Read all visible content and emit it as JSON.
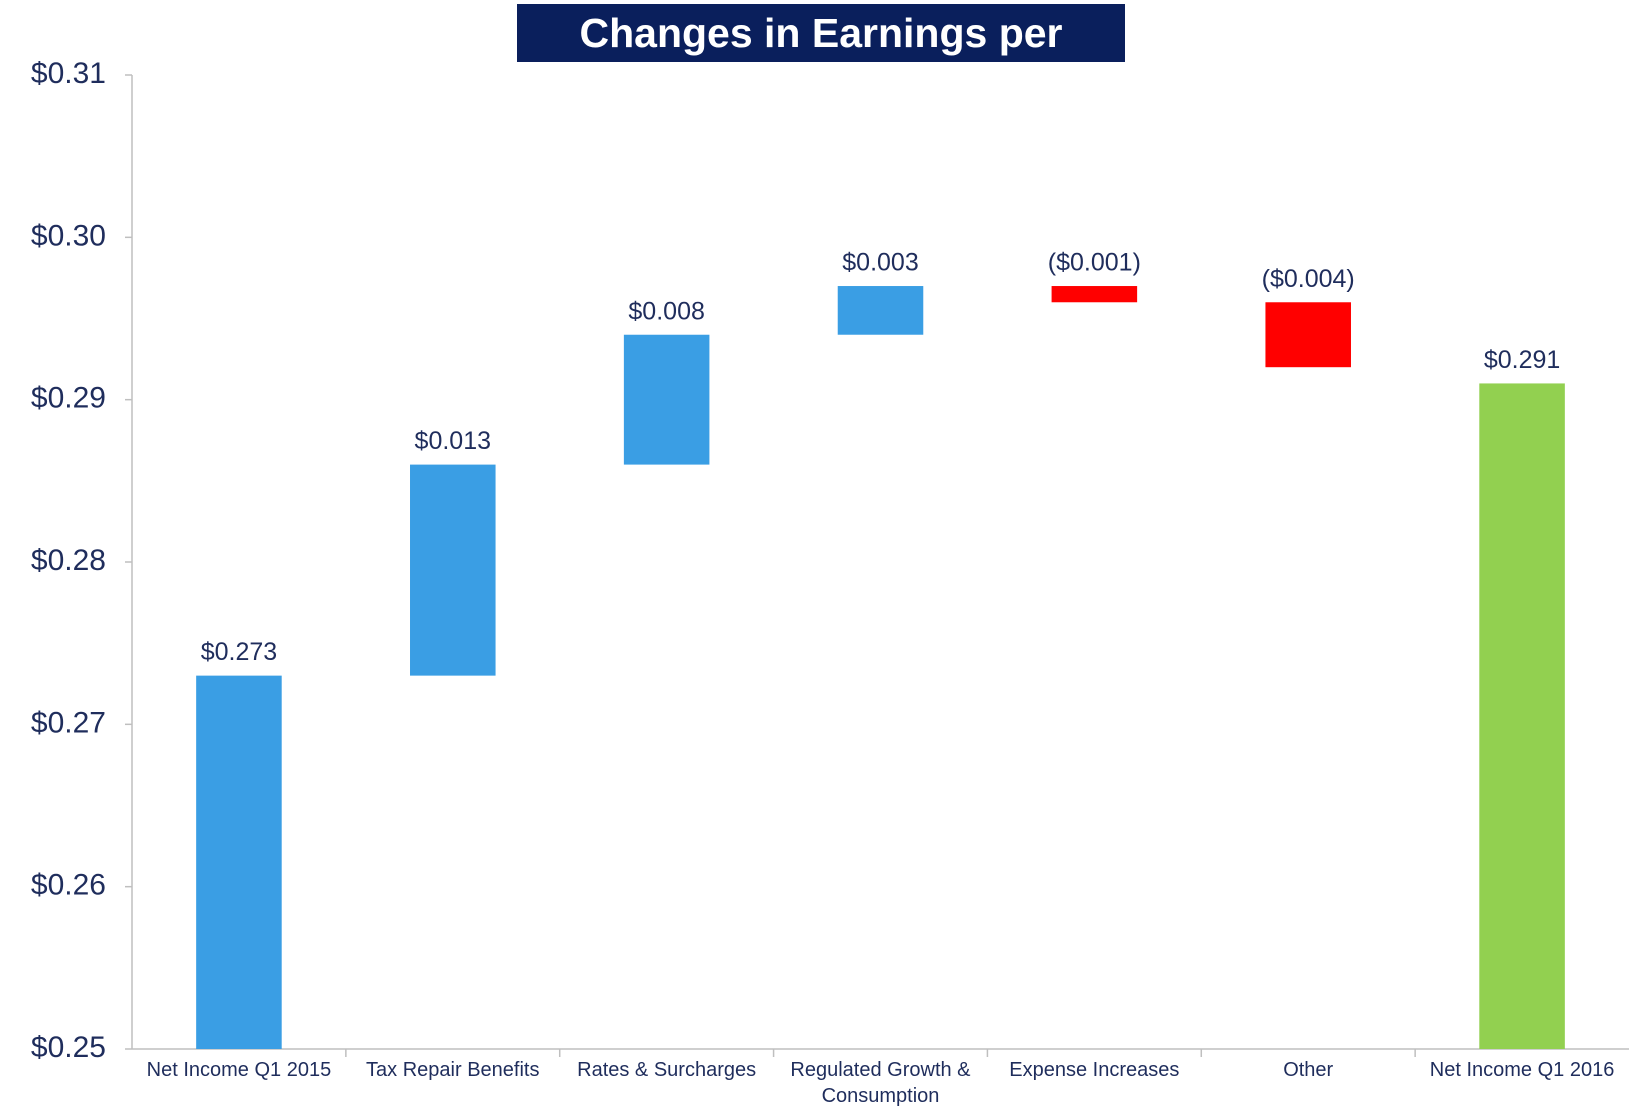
{
  "chart_data": {
    "type": "waterfall",
    "title": "Changes in Earnings per Share",
    "categories": [
      "Net Income Q1 2015",
      "Tax Repair Benefits",
      "Rates & Surcharges",
      "Regulated Growth & Consumption",
      "Expense Increases",
      "Other",
      "Net Income Q1 2016"
    ],
    "values": [
      0.273,
      0.013,
      0.008,
      0.003,
      -0.001,
      -0.004,
      0.291
    ],
    "value_labels": [
      "$0.273",
      "$0.013",
      "$0.008",
      "$0.003",
      "($0.001)",
      "($0.004)",
      "$0.291"
    ],
    "is_total": [
      true,
      false,
      false,
      false,
      false,
      false,
      true
    ],
    "colors": [
      "#3a9ee4",
      "#3a9ee4",
      "#3a9ee4",
      "#3a9ee4",
      "#ff0000",
      "#ff0000",
      "#92d050"
    ],
    "ylim": [
      0.25,
      0.31
    ],
    "yticks": [
      {
        "value": 0.25,
        "label": "$0.25"
      },
      {
        "value": 0.26,
        "label": "$0.26"
      },
      {
        "value": 0.27,
        "label": "$0.27"
      },
      {
        "value": 0.28,
        "label": "$0.28"
      },
      {
        "value": 0.29,
        "label": "$0.29"
      },
      {
        "value": 0.3,
        "label": "$0.30"
      },
      {
        "value": 0.31,
        "label": "$0.31"
      }
    ],
    "grid": false
  }
}
